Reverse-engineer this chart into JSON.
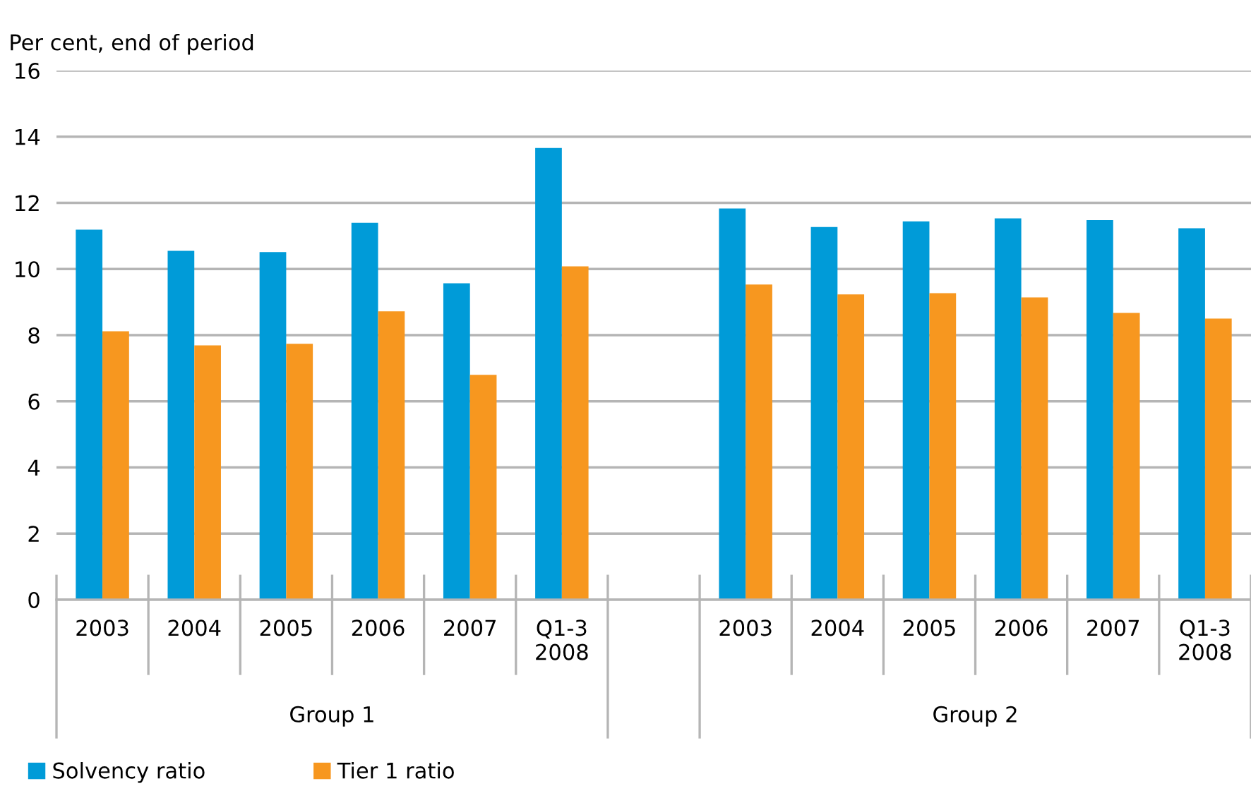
{
  "chart_data": {
    "type": "bar",
    "ylabel": "Per cent, end of period",
    "categories": [
      "2003",
      "2004",
      "2005",
      "2006",
      "2007",
      "Q1-3\n2008",
      null,
      "2003",
      "2004",
      "2005",
      "2006",
      "2007",
      "Q1-3\n2008"
    ],
    "series": [
      {
        "name": "Solvency ratio",
        "color": "#009bd8",
        "values": [
          11.19,
          10.55,
          10.51,
          11.4,
          9.57,
          13.66,
          null,
          11.83,
          11.27,
          11.44,
          11.53,
          11.48,
          11.23
        ]
      },
      {
        "name": "Tier 1 ratio",
        "color": "#f7971f",
        "values": [
          8.12,
          7.69,
          7.74,
          8.72,
          6.8,
          10.08,
          null,
          9.53,
          9.23,
          9.27,
          9.14,
          8.67,
          8.5
        ]
      }
    ],
    "annotations": [
      "Group 1",
      "Group 2"
    ],
    "ylim": [
      0,
      16
    ],
    "yticks": [
      0,
      2,
      4,
      6,
      8,
      10,
      12,
      14,
      16
    ],
    "grid": "y",
    "legend": "bottom left"
  }
}
